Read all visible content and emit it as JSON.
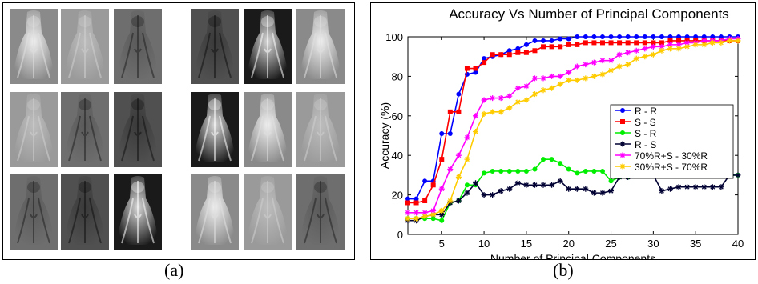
{
  "panels": [
    {
      "caption": "(a)"
    },
    {
      "caption": "(b)"
    }
  ],
  "chart_data": {
    "type": "line",
    "title": "Accuracy Vs Number of Principal Components",
    "xlabel": "Number of Principal Components",
    "ylabel": "Accuracy (%)",
    "xlim": [
      1,
      40
    ],
    "ylim": [
      0,
      100
    ],
    "xticks": [
      5,
      10,
      15,
      20,
      25,
      30,
      35,
      40
    ],
    "yticks": [
      0,
      20,
      40,
      60,
      80,
      100
    ],
    "grid": false,
    "legend_position": "right-middle",
    "x": [
      1,
      2,
      3,
      4,
      5,
      6,
      7,
      8,
      9,
      10,
      11,
      12,
      13,
      14,
      15,
      16,
      17,
      18,
      19,
      20,
      21,
      22,
      23,
      24,
      25,
      26,
      27,
      28,
      29,
      30,
      31,
      32,
      33,
      34,
      35,
      36,
      37,
      38,
      39,
      40
    ],
    "series": [
      {
        "name": "R - R",
        "color": "#0000ff",
        "marker": "circle",
        "values": [
          18,
          18,
          27,
          27,
          51,
          51,
          71,
          81,
          82,
          89,
          90,
          91,
          93,
          94,
          96,
          98,
          98,
          98,
          99,
          99,
          100,
          100,
          100,
          100,
          100,
          100,
          100,
          100,
          100,
          100,
          100,
          100,
          100,
          100,
          100,
          100,
          100,
          100,
          100,
          100
        ]
      },
      {
        "name": "S - S",
        "color": "#ff0000",
        "marker": "square",
        "values": [
          16,
          16,
          17,
          25,
          38,
          62,
          62,
          84,
          84,
          87,
          91,
          91,
          91,
          92,
          92,
          93,
          95,
          95,
          95,
          96,
          96,
          97,
          97,
          97,
          97,
          97,
          97,
          97,
          97,
          97,
          97,
          98,
          98,
          98,
          98,
          98,
          98,
          98,
          98,
          98
        ]
      },
      {
        "name": "S - R",
        "color": "#00ee00",
        "marker": "circle",
        "values": [
          8,
          8,
          8,
          8,
          7,
          16,
          17,
          25,
          25,
          31,
          32,
          32,
          32,
          32,
          32,
          33,
          38,
          38,
          36,
          33,
          31,
          32,
          32,
          32,
          27,
          29,
          29,
          30,
          30,
          30,
          30,
          30,
          31,
          34,
          34,
          33,
          32,
          31,
          30,
          30
        ]
      },
      {
        "name": "R - S",
        "color": "#000033",
        "marker": "star",
        "values": [
          7,
          7,
          9,
          10,
          10,
          16,
          17,
          21,
          26,
          20,
          20,
          22,
          23,
          26,
          25,
          25,
          25,
          25,
          27,
          23,
          23,
          23,
          21,
          21,
          22,
          29,
          29,
          30,
          30,
          30,
          22,
          23,
          24,
          24,
          24,
          24,
          24,
          24,
          30,
          30
        ]
      },
      {
        "name": "70%R+S - 30%R",
        "color": "#ff00ff",
        "marker": "star",
        "values": [
          11,
          11,
          11,
          12,
          23,
          33,
          40,
          49,
          60,
          68,
          69,
          69,
          70,
          74,
          75,
          79,
          79,
          80,
          80,
          82,
          85,
          86,
          87,
          88,
          88,
          91,
          92,
          93,
          94,
          95,
          95,
          96,
          96,
          97,
          97,
          98,
          98,
          98,
          99,
          99
        ]
      },
      {
        "name": "30%R+S - 70%R",
        "color": "#ffcc00",
        "marker": "star",
        "values": [
          8,
          8,
          9,
          10,
          12,
          17,
          29,
          38,
          52,
          61,
          62,
          62,
          64,
          67,
          68,
          71,
          73,
          74,
          76,
          78,
          78,
          79,
          80,
          81,
          83,
          85,
          86,
          89,
          90,
          91,
          93,
          94,
          94,
          95,
          96,
          96,
          97,
          97,
          98,
          98
        ]
      }
    ]
  }
}
